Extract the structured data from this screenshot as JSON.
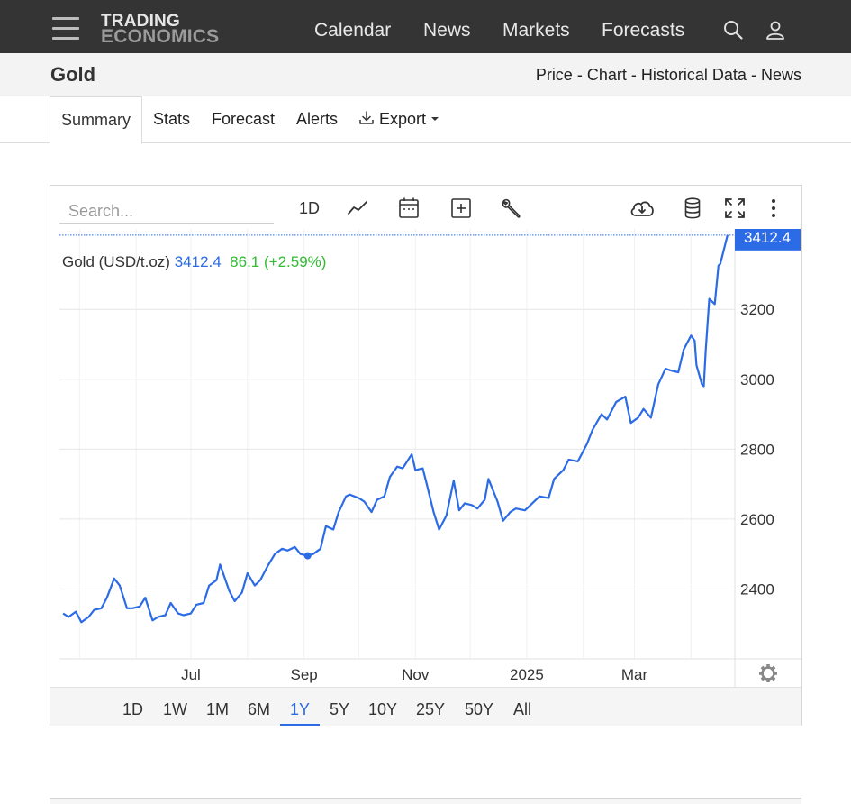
{
  "nav": {
    "logo_line1": "TRADING",
    "logo_line2": "ECONOMICS",
    "links": [
      "Calendar",
      "News",
      "Markets",
      "Forecasts"
    ],
    "icons": [
      "search-icon",
      "user-icon",
      "menu-icon"
    ]
  },
  "header": {
    "title": "Gold",
    "breadcrumbs": [
      "Price",
      "Chart",
      "Historical Data",
      "News"
    ],
    "separator": "-"
  },
  "tabs": {
    "items": [
      "Summary",
      "Stats",
      "Forecast",
      "Alerts",
      "Export"
    ],
    "active": "Summary"
  },
  "chart_toolbar": {
    "search_placeholder": "Search...",
    "interval": "1D",
    "icons": [
      "line-chart-icon",
      "calendar-icon",
      "add-icon",
      "wrench-icon",
      "cloud-download-icon",
      "database-icon",
      "fullscreen-icon",
      "more-icon"
    ]
  },
  "legend": {
    "name": "Gold (USD/t.oz)",
    "price": "3412.4",
    "change": "86.1",
    "change_pct": "(+2.59%)"
  },
  "ranges": {
    "items": [
      "1D",
      "1W",
      "1M",
      "6M",
      "1Y",
      "5Y",
      "10Y",
      "25Y",
      "50Y",
      "All"
    ],
    "active": "1Y"
  },
  "colors": {
    "line": "#2b6be6",
    "positive": "#33bb33",
    "nav_bg": "#343434",
    "price_tag_bg": "#2b6be6"
  },
  "chart_data": {
    "type": "line",
    "title": "",
    "xlabel": "",
    "ylabel": "",
    "x_ticks": [
      "Jul",
      "Sep",
      "Nov",
      "2025",
      "Mar"
    ],
    "y_ticks": [
      2400,
      2600,
      2800,
      3000,
      3200
    ],
    "ylim": [
      2200,
      3430
    ],
    "last_value_label": "3412.4",
    "grid": true,
    "series": [
      {
        "name": "Gold (USD/t.oz)",
        "points": [
          [
            "2024-04-22",
            2330
          ],
          [
            "2024-04-25",
            2320
          ],
          [
            "2024-04-29",
            2335
          ],
          [
            "2024-05-02",
            2305
          ],
          [
            "2024-05-06",
            2320
          ],
          [
            "2024-05-09",
            2340
          ],
          [
            "2024-05-13",
            2345
          ],
          [
            "2024-05-16",
            2375
          ],
          [
            "2024-05-20",
            2430
          ],
          [
            "2024-05-23",
            2410
          ],
          [
            "2024-05-27",
            2345
          ],
          [
            "2024-05-30",
            2345
          ],
          [
            "2024-06-03",
            2350
          ],
          [
            "2024-06-06",
            2375
          ],
          [
            "2024-06-10",
            2310
          ],
          [
            "2024-06-13",
            2320
          ],
          [
            "2024-06-17",
            2325
          ],
          [
            "2024-06-20",
            2360
          ],
          [
            "2024-06-24",
            2330
          ],
          [
            "2024-06-27",
            2325
          ],
          [
            "2024-07-01",
            2330
          ],
          [
            "2024-07-04",
            2355
          ],
          [
            "2024-07-08",
            2360
          ],
          [
            "2024-07-11",
            2410
          ],
          [
            "2024-07-15",
            2425
          ],
          [
            "2024-07-17",
            2470
          ],
          [
            "2024-07-22",
            2395
          ],
          [
            "2024-07-25",
            2365
          ],
          [
            "2024-07-29",
            2390
          ],
          [
            "2024-08-01",
            2445
          ],
          [
            "2024-08-05",
            2410
          ],
          [
            "2024-08-08",
            2425
          ],
          [
            "2024-08-12",
            2465
          ],
          [
            "2024-08-16",
            2500
          ],
          [
            "2024-08-20",
            2515
          ],
          [
            "2024-08-23",
            2510
          ],
          [
            "2024-08-27",
            2520
          ],
          [
            "2024-08-30",
            2500
          ],
          [
            "2024-09-03",
            2495
          ],
          [
            "2024-09-06",
            2500
          ],
          [
            "2024-09-10",
            2515
          ],
          [
            "2024-09-13",
            2580
          ],
          [
            "2024-09-17",
            2570
          ],
          [
            "2024-09-20",
            2620
          ],
          [
            "2024-09-24",
            2665
          ],
          [
            "2024-09-26",
            2670
          ],
          [
            "2024-10-01",
            2660
          ],
          [
            "2024-10-04",
            2650
          ],
          [
            "2024-10-08",
            2620
          ],
          [
            "2024-10-11",
            2655
          ],
          [
            "2024-10-15",
            2665
          ],
          [
            "2024-10-18",
            2720
          ],
          [
            "2024-10-22",
            2750
          ],
          [
            "2024-10-25",
            2745
          ],
          [
            "2024-10-30",
            2785
          ],
          [
            "2024-11-01",
            2740
          ],
          [
            "2024-11-05",
            2745
          ],
          [
            "2024-11-07",
            2705
          ],
          [
            "2024-11-11",
            2620
          ],
          [
            "2024-11-14",
            2570
          ],
          [
            "2024-11-18",
            2610
          ],
          [
            "2024-11-22",
            2710
          ],
          [
            "2024-11-25",
            2625
          ],
          [
            "2024-11-28",
            2645
          ],
          [
            "2024-12-02",
            2640
          ],
          [
            "2024-12-05",
            2630
          ],
          [
            "2024-12-09",
            2655
          ],
          [
            "2024-12-11",
            2715
          ],
          [
            "2024-12-16",
            2650
          ],
          [
            "2024-12-19",
            2595
          ],
          [
            "2024-12-23",
            2620
          ],
          [
            "2024-12-26",
            2630
          ],
          [
            "2024-12-31",
            2625
          ],
          [
            "2025-01-03",
            2640
          ],
          [
            "2025-01-08",
            2665
          ],
          [
            "2025-01-13",
            2660
          ],
          [
            "2025-01-16",
            2715
          ],
          [
            "2025-01-21",
            2740
          ],
          [
            "2025-01-24",
            2770
          ],
          [
            "2025-01-29",
            2765
          ],
          [
            "2025-02-03",
            2815
          ],
          [
            "2025-02-06",
            2855
          ],
          [
            "2025-02-11",
            2900
          ],
          [
            "2025-02-14",
            2885
          ],
          [
            "2025-02-19",
            2935
          ],
          [
            "2025-02-24",
            2950
          ],
          [
            "2025-02-27",
            2875
          ],
          [
            "2025-03-03",
            2890
          ],
          [
            "2025-03-06",
            2915
          ],
          [
            "2025-03-10",
            2890
          ],
          [
            "2025-03-14",
            2985
          ],
          [
            "2025-03-18",
            3030
          ],
          [
            "2025-03-21",
            3025
          ],
          [
            "2025-03-25",
            3020
          ],
          [
            "2025-03-28",
            3085
          ],
          [
            "2025-04-01",
            3125
          ],
          [
            "2025-04-03",
            3110
          ],
          [
            "2025-04-04",
            3040
          ],
          [
            "2025-04-07",
            2985
          ],
          [
            "2025-04-08",
            2980
          ],
          [
            "2025-04-09",
            3080
          ],
          [
            "2025-04-11",
            3230
          ],
          [
            "2025-04-14",
            3215
          ],
          [
            "2025-04-16",
            3325
          ],
          [
            "2025-04-17",
            3330
          ],
          [
            "2025-04-21",
            3412.4
          ]
        ]
      }
    ]
  }
}
